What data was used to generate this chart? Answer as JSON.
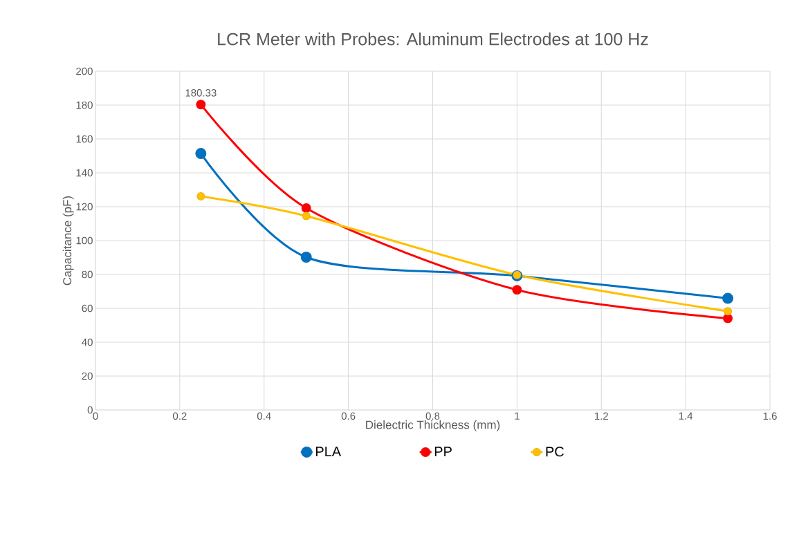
{
  "chart_data": {
    "type": "line",
    "title": "LCR Meter with Probes: Aluminum Electrodes at 100 Hz",
    "xlabel": "Dielectric Thickness (mm)",
    "ylabel": "Capacitance (pF)",
    "x": [
      0.25,
      0.5,
      1,
      1.5
    ],
    "series": [
      {
        "name": "PLA",
        "color": "#0070c0",
        "values": [
          151.4,
          90.2,
          79.2,
          65.9
        ]
      },
      {
        "name": "PP",
        "color": "#ff0000",
        "values": [
          180.33,
          119.2,
          70.9,
          54.1
        ],
        "value_labels": [
          "180.33",
          null,
          null,
          null
        ]
      },
      {
        "name": "PC",
        "color": "#ffc000",
        "values": [
          126.1,
          114.5,
          79.7,
          58.3
        ]
      }
    ],
    "xlim": [
      0,
      1.6
    ],
    "xticks": [
      0,
      0.2,
      0.4,
      0.6,
      0.8,
      1,
      1.2,
      1.4,
      1.6
    ],
    "ylim": [
      0,
      200
    ],
    "yticks": [
      0,
      20,
      40,
      60,
      80,
      100,
      120,
      140,
      160,
      180,
      200
    ],
    "grid": true,
    "legend": "bottom",
    "marker": "circle",
    "line_style": "solid"
  }
}
